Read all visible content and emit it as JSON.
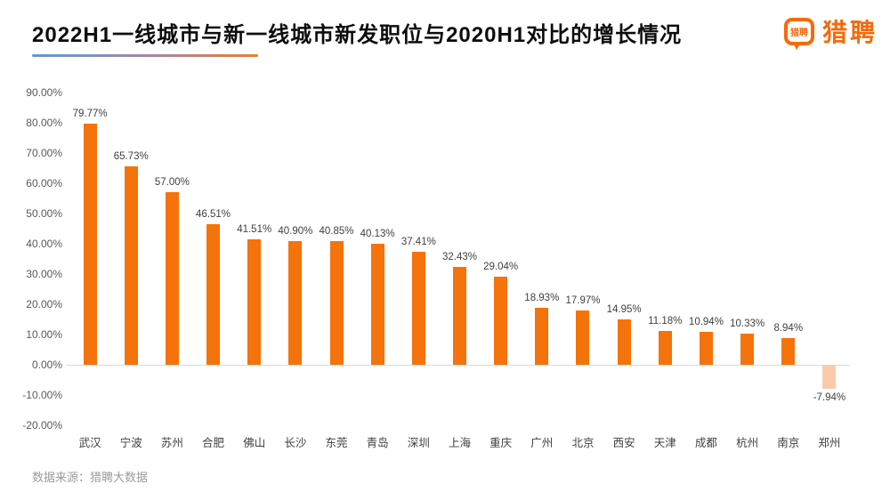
{
  "header": {
    "title": "2022H1一线城市与新一线城市新发职位与2020H1对比的增长情况",
    "logo": {
      "bubble_text": "猎聘",
      "wordmark": "猎聘"
    }
  },
  "chart_data": {
    "type": "bar",
    "title": "2022H1一线城市与新一线城市新发职位与2020H1对比的增长情况",
    "categories": [
      "武汉",
      "宁波",
      "苏州",
      "合肥",
      "佛山",
      "长沙",
      "东莞",
      "青岛",
      "深圳",
      "上海",
      "重庆",
      "广州",
      "北京",
      "西安",
      "天津",
      "成都",
      "杭州",
      "南京",
      "郑州"
    ],
    "values": [
      79.77,
      65.73,
      57.0,
      46.51,
      41.51,
      40.9,
      40.85,
      40.13,
      37.41,
      32.43,
      29.04,
      18.93,
      17.97,
      14.95,
      11.18,
      10.94,
      10.33,
      8.94,
      -7.94
    ],
    "labels": [
      "79.77%",
      "65.73%",
      "57.00%",
      "46.51%",
      "41.51%",
      "40.90%",
      "40.85%",
      "40.13%",
      "37.41%",
      "32.43%",
      "29.04%",
      "18.93%",
      "17.97%",
      "14.95%",
      "11.18%",
      "10.94%",
      "10.33%",
      "8.94%",
      "-7.94%"
    ],
    "y_ticks": [
      {
        "value": 90,
        "label": "90.00%"
      },
      {
        "value": 80,
        "label": "80.00%"
      },
      {
        "value": 70,
        "label": "70.00%"
      },
      {
        "value": 60,
        "label": "60.00%"
      },
      {
        "value": 50,
        "label": "50.00%"
      },
      {
        "value": 40,
        "label": "40.00%"
      },
      {
        "value": 30,
        "label": "30.00%"
      },
      {
        "value": 20,
        "label": "20.00%"
      },
      {
        "value": 10,
        "label": "10.00%"
      },
      {
        "value": 0,
        "label": "0.00%"
      },
      {
        "value": -10,
        "label": "-10.00%"
      },
      {
        "value": -20,
        "label": "-20.00%"
      }
    ],
    "ylim": [
      -20,
      90
    ],
    "xlabel": "",
    "ylabel": "",
    "grid": false,
    "legend": null,
    "colors": {
      "bar_positive": "#F5730B",
      "bar_negative": "#F8CBAD",
      "axis_line": "#D9D9D9"
    }
  },
  "footer": {
    "source": "数据来源：猎聘大数据"
  }
}
